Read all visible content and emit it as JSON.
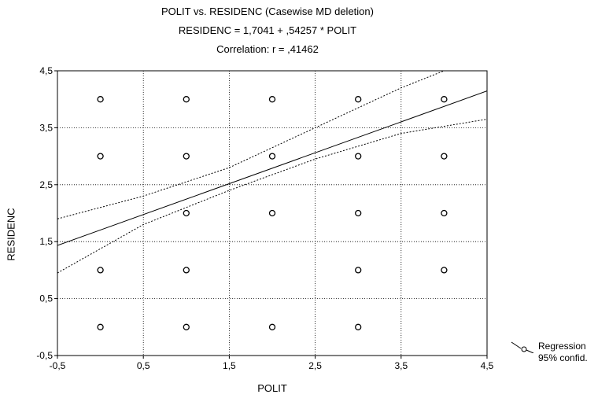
{
  "chart_data": {
    "type": "scatter",
    "title": "POLIT vs. RESIDENC (Casewise MD deletion)",
    "subtitle": "RESIDENC = 1,7041 + ,54257 * POLIT",
    "subtitle2": "Correlation: r = ,41462",
    "xlabel": "POLIT",
    "ylabel": "RESIDENC",
    "xlim": [
      -0.5,
      4.5
    ],
    "ylim": [
      -0.5,
      4.5
    ],
    "xticks": [
      "-0,5",
      "0,5",
      "1,5",
      "2,5",
      "3,5",
      "4,5"
    ],
    "yticks": [
      "-0,5",
      "0,5",
      "1,5",
      "2,5",
      "3,5",
      "4,5"
    ],
    "grid": true,
    "points": [
      {
        "x": 0,
        "y": 4
      },
      {
        "x": 1,
        "y": 4
      },
      {
        "x": 2,
        "y": 4
      },
      {
        "x": 3,
        "y": 4
      },
      {
        "x": 4,
        "y": 4
      },
      {
        "x": 0,
        "y": 3
      },
      {
        "x": 1,
        "y": 3
      },
      {
        "x": 2,
        "y": 3
      },
      {
        "x": 3,
        "y": 3
      },
      {
        "x": 4,
        "y": 3
      },
      {
        "x": 1,
        "y": 2
      },
      {
        "x": 2,
        "y": 2
      },
      {
        "x": 3,
        "y": 2
      },
      {
        "x": 4,
        "y": 2
      },
      {
        "x": 0,
        "y": 1
      },
      {
        "x": 1,
        "y": 1
      },
      {
        "x": 3,
        "y": 1
      },
      {
        "x": 4,
        "y": 1
      },
      {
        "x": 0,
        "y": 0
      },
      {
        "x": 1,
        "y": 0
      },
      {
        "x": 2,
        "y": 0
      },
      {
        "x": 3,
        "y": 0
      }
    ],
    "regression": {
      "intercept": 1.7041,
      "slope": 0.54257
    },
    "confidence_band": {
      "upper": [
        [
          -0.5,
          1.9
        ],
        [
          0.5,
          2.3
        ],
        [
          1.5,
          2.8
        ],
        [
          2.5,
          3.5
        ],
        [
          3.5,
          4.2
        ],
        [
          4.0,
          4.5
        ]
      ],
      "lower": [
        [
          -0.5,
          0.95
        ],
        [
          0.5,
          1.8
        ],
        [
          1.5,
          2.4
        ],
        [
          2.5,
          2.95
        ],
        [
          3.5,
          3.4
        ],
        [
          4.5,
          3.65
        ]
      ]
    },
    "legend": {
      "position": "bottom-right",
      "entries": [
        "Regression",
        "95% confid."
      ]
    }
  }
}
